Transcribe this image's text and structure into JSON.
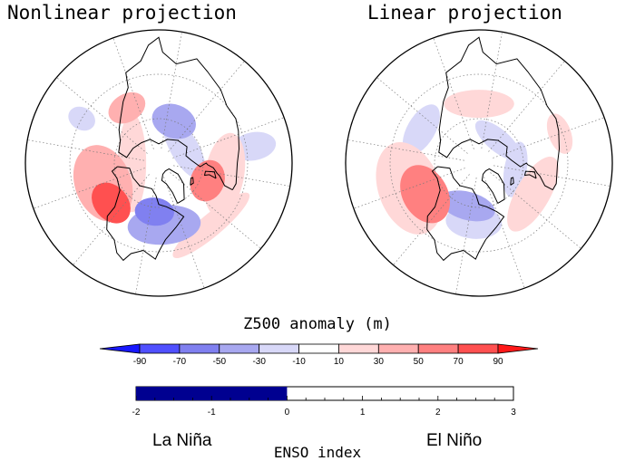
{
  "panels": [
    {
      "title": "Nonlinear projection",
      "anomalies": [
        {
          "lon": -130,
          "lat": 48,
          "value": 80,
          "rx": 16,
          "ry": 12
        },
        {
          "lon": -150,
          "lat": 50,
          "value": 30,
          "rx": 28,
          "ry": 20
        },
        {
          "lon": -85,
          "lat": 57,
          "value": -60,
          "rx": 14,
          "ry": 10
        },
        {
          "lon": -75,
          "lat": 48,
          "value": -30,
          "rx": 26,
          "ry": 14
        },
        {
          "lon": -10,
          "lat": 55,
          "value": 50,
          "rx": 15,
          "ry": 12
        },
        {
          "lon": 0,
          "lat": 45,
          "value": 20,
          "rx": 30,
          "ry": 14
        },
        {
          "lon": 80,
          "lat": 60,
          "value": -40,
          "rx": 16,
          "ry": 12
        },
        {
          "lon": 40,
          "lat": 70,
          "value": -20,
          "rx": 25,
          "ry": 10
        },
        {
          "lon": 130,
          "lat": 47,
          "value": 30,
          "rx": 14,
          "ry": 10
        },
        {
          "lon": -170,
          "lat": 72,
          "value": 20,
          "rx": 35,
          "ry": 10
        },
        {
          "lon": 160,
          "lat": 30,
          "value": -15,
          "rx": 8,
          "ry": 10
        },
        {
          "lon": -40,
          "lat": 35,
          "value": 10,
          "rx": 35,
          "ry": 8
        },
        {
          "lon": 20,
          "lat": 25,
          "value": -15,
          "rx": 10,
          "ry": 16
        }
      ]
    },
    {
      "title": "Linear projection",
      "anomalies": [
        {
          "lon": -140,
          "lat": 48,
          "value": 60,
          "rx": 22,
          "ry": 16
        },
        {
          "lon": -150,
          "lat": 40,
          "value": 20,
          "rx": 34,
          "ry": 22
        },
        {
          "lon": -95,
          "lat": 60,
          "value": -40,
          "rx": 20,
          "ry": 10
        },
        {
          "lon": -85,
          "lat": 50,
          "value": -20,
          "rx": 20,
          "ry": 12
        },
        {
          "lon": -20,
          "lat": 48,
          "value": 20,
          "rx": 30,
          "ry": 12
        },
        {
          "lon": 30,
          "lat": 32,
          "value": 20,
          "rx": 15,
          "ry": 8
        },
        {
          "lon": 100,
          "lat": 50,
          "value": 20,
          "rx": 25,
          "ry": 10
        },
        {
          "lon": 60,
          "lat": 70,
          "value": -15,
          "rx": 20,
          "ry": 8
        },
        {
          "lon": 160,
          "lat": 45,
          "value": -15,
          "rx": 20,
          "ry": 10
        },
        {
          "lon": 0,
          "lat": 65,
          "value": -10,
          "rx": 20,
          "ry": 8
        }
      ]
    }
  ],
  "colorbar": {
    "title": "Z500 anomaly (m)",
    "tick_labels": [
      "-90",
      "-70",
      "-50",
      "-30",
      "-10",
      "10",
      "30",
      "50",
      "70",
      "90"
    ],
    "colors": [
      "#1818ff",
      "#5050ff",
      "#8080f0",
      "#a8a8f0",
      "#d8d8f8",
      "#ffffff",
      "#ffd8d8",
      "#ffb0b0",
      "#ff8080",
      "#ff5050",
      "#ff1818"
    ]
  },
  "enso": {
    "title": "ENSO index",
    "tick_labels": [
      "-2",
      "-1",
      "0",
      "1",
      "2",
      "3"
    ],
    "range": [
      -2,
      3
    ],
    "value": 0,
    "fill_color": "#000090",
    "left_label": "La Niña",
    "right_label": "El Niño"
  }
}
